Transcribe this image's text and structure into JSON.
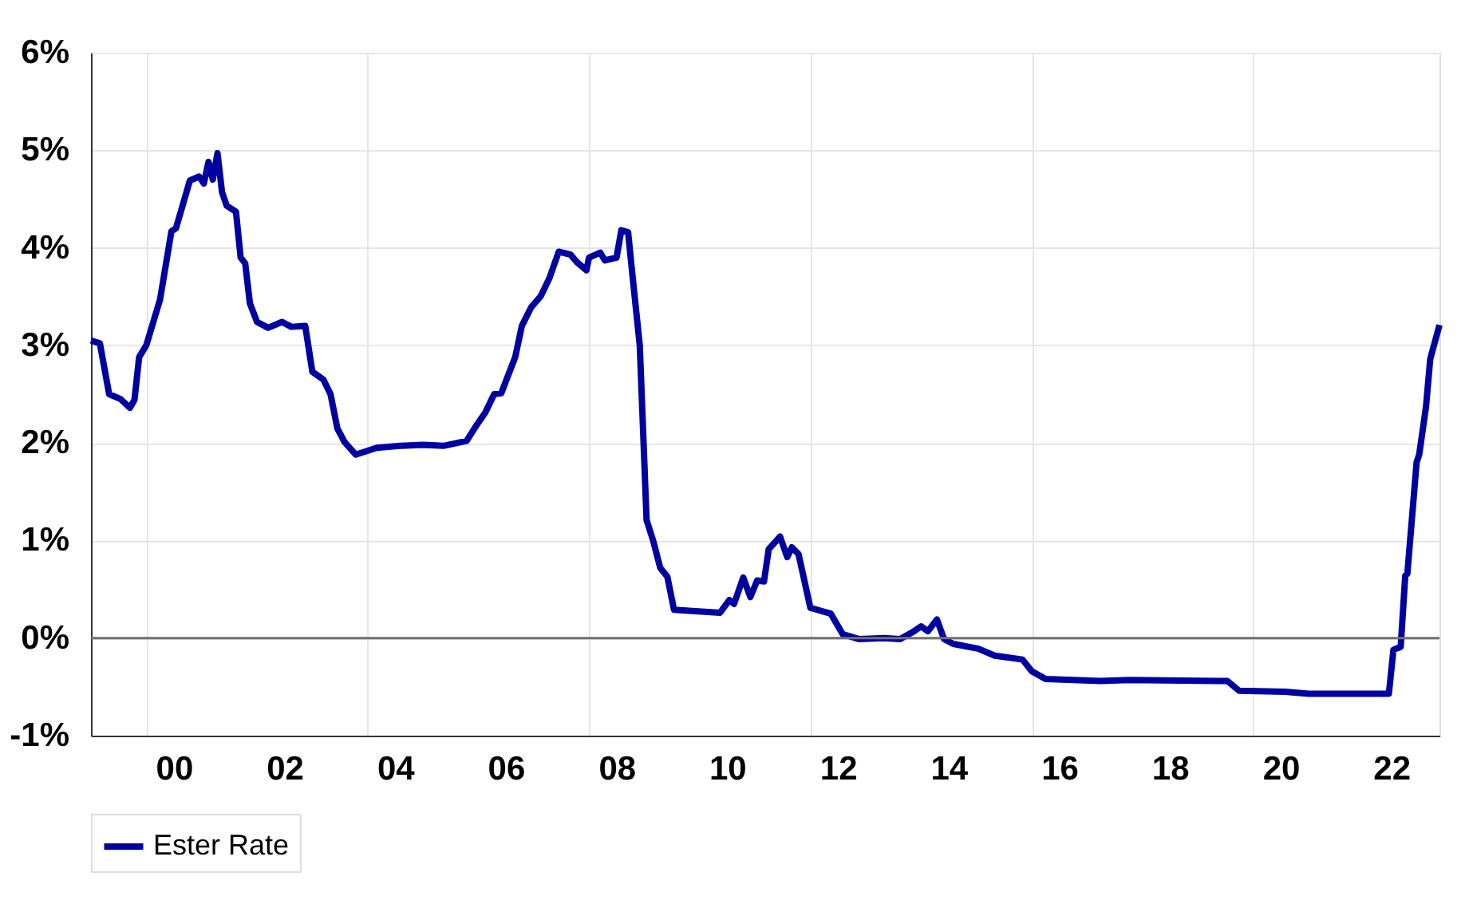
{
  "chart_data": {
    "type": "line",
    "x": [
      "1999-01-01",
      "1999-03-01",
      "1999-05-01",
      "1999-07-15",
      "1999-09-15",
      "1999-10-15",
      "1999-11-15",
      "2000-01-01",
      "2000-04-01",
      "2000-06-15",
      "2000-07-15",
      "2000-10-15",
      "2000-12-15",
      "2001-01-15",
      "2001-02-15",
      "2001-03-15",
      "2001-04-15",
      "2001-05-15",
      "2001-06-15",
      "2001-08-15",
      "2001-09-15",
      "2001-10-15",
      "2001-11-15",
      "2002-01-01",
      "2002-03-15",
      "2002-06-15",
      "2002-08-15",
      "2002-11-15",
      "2003-01-01",
      "2003-03-15",
      "2003-05-01",
      "2003-06-15",
      "2003-08-01",
      "2003-10-15",
      "2004-03-01",
      "2004-08-01",
      "2005-01-01",
      "2005-05-15",
      "2005-10-15",
      "2005-12-15",
      "2006-02-15",
      "2006-04-15",
      "2006-06-01",
      "2006-09-01",
      "2006-10-15",
      "2006-12-15",
      "2007-02-15",
      "2007-04-15",
      "2007-06-15",
      "2007-09-01",
      "2007-10-15",
      "2007-12-15",
      "2008-01-01",
      "2008-03-15",
      "2008-04-15",
      "2008-07-01",
      "2008-08-01",
      "2008-09-15",
      "2008-10-15",
      "2008-12-01",
      "2009-01-15",
      "2009-03-01",
      "2009-04-15",
      "2009-06-01",
      "2009-07-15",
      "2010-02-01",
      "2010-05-15",
      "2010-07-15",
      "2010-08-15",
      "2010-10-15",
      "2010-12-01",
      "2011-01-15",
      "2011-03-01",
      "2011-04-01",
      "2011-06-15",
      "2011-08-01",
      "2011-09-01",
      "2011-10-15",
      "2012-01-01",
      "2012-05-15",
      "2012-08-01",
      "2012-11-15",
      "2013-05-01",
      "2013-08-15",
      "2013-11-15",
      "2014-01-01",
      "2014-02-15",
      "2014-04-15",
      "2014-06-01",
      "2014-08-01",
      "2015-01-15",
      "2015-05-01",
      "2015-11-01",
      "2016-01-01",
      "2016-04-01",
      "2017-04-01",
      "2017-10-01",
      "2019-07-15",
      "2019-10-01",
      "2020-08-01",
      "2021-01-01",
      "2022-06-15",
      "2022-07-15",
      "2022-09-01",
      "2022-10-01",
      "2022-10-15",
      "2022-12-15",
      "2023-01-01",
      "2023-02-15",
      "2023-03-15",
      "2023-05-15"
    ],
    "series": [
      {
        "name": "Ester Rate",
        "color": "#0000a0",
        "values": [
          3.05,
          3.02,
          2.5,
          2.45,
          2.36,
          2.44,
          2.88,
          3.0,
          3.47,
          4.17,
          4.2,
          4.69,
          4.73,
          4.66,
          4.88,
          4.7,
          4.97,
          4.57,
          4.43,
          4.37,
          3.9,
          3.84,
          3.43,
          3.24,
          3.18,
          3.24,
          3.19,
          3.2,
          2.73,
          2.65,
          2.5,
          2.15,
          2.01,
          1.88,
          1.95,
          1.97,
          1.98,
          1.97,
          2.02,
          2.17,
          2.31,
          2.5,
          2.51,
          2.88,
          3.2,
          3.39,
          3.5,
          3.69,
          3.96,
          3.93,
          3.85,
          3.77,
          3.9,
          3.95,
          3.87,
          3.9,
          4.18,
          4.16,
          3.7,
          3.0,
          1.21,
          0.99,
          0.72,
          0.63,
          0.29,
          0.27,
          0.26,
          0.39,
          0.35,
          0.62,
          0.42,
          0.59,
          0.58,
          0.91,
          1.04,
          0.83,
          0.93,
          0.86,
          0.31,
          0.25,
          0.04,
          -0.01,
          0.0,
          -0.01,
          0.07,
          0.12,
          0.07,
          0.19,
          -0.01,
          -0.06,
          -0.11,
          -0.18,
          -0.22,
          -0.34,
          -0.42,
          -0.44,
          -0.43,
          -0.44,
          -0.54,
          -0.55,
          -0.57,
          -0.57,
          -0.12,
          -0.09,
          0.64,
          0.66,
          1.8,
          1.88,
          2.37,
          2.86,
          3.21
        ]
      }
    ],
    "xlim": [
      "1999-01-01",
      "2023-05-15"
    ],
    "xticks": [
      {
        "value": "2000-01-01",
        "label": null
      },
      {
        "value": "2004-01-01",
        "label": null
      },
      {
        "value": "2008-01-01",
        "label": null
      },
      {
        "value": "2012-01-01",
        "label": null
      },
      {
        "value": "2016-01-01",
        "label": null
      },
      {
        "value": "2020-01-01",
        "label": null
      },
      {
        "value": "2000-07-01",
        "label": "00"
      },
      {
        "value": "2002-07-01",
        "label": "02"
      },
      {
        "value": "2004-07-01",
        "label": "04"
      },
      {
        "value": "2006-07-01",
        "label": "06"
      },
      {
        "value": "2008-07-01",
        "label": "08"
      },
      {
        "value": "2010-07-01",
        "label": "10"
      },
      {
        "value": "2012-07-01",
        "label": "12"
      },
      {
        "value": "2014-07-01",
        "label": "14"
      },
      {
        "value": "2016-07-01",
        "label": "16"
      },
      {
        "value": "2018-07-01",
        "label": "18"
      },
      {
        "value": "2020-07-01",
        "label": "20"
      },
      {
        "value": "2022-07-01",
        "label": "22"
      }
    ],
    "ylim": [
      -1,
      6
    ],
    "yticks": [
      {
        "value": -1,
        "label": "-1%"
      },
      {
        "value": 0,
        "label": "0%"
      },
      {
        "value": 1,
        "label": "1%"
      },
      {
        "value": 2,
        "label": "2%"
      },
      {
        "value": 3,
        "label": "3%"
      },
      {
        "value": 4,
        "label": "4%"
      },
      {
        "value": 5,
        "label": "5%"
      },
      {
        "value": 6,
        "label": "6%"
      }
    ],
    "ref_lines": [
      {
        "axis": "y",
        "value": 0,
        "label": null,
        "color": "#707070"
      }
    ],
    "grid": true,
    "legend": "bottom",
    "marker": "none",
    "line_style": "solid"
  }
}
